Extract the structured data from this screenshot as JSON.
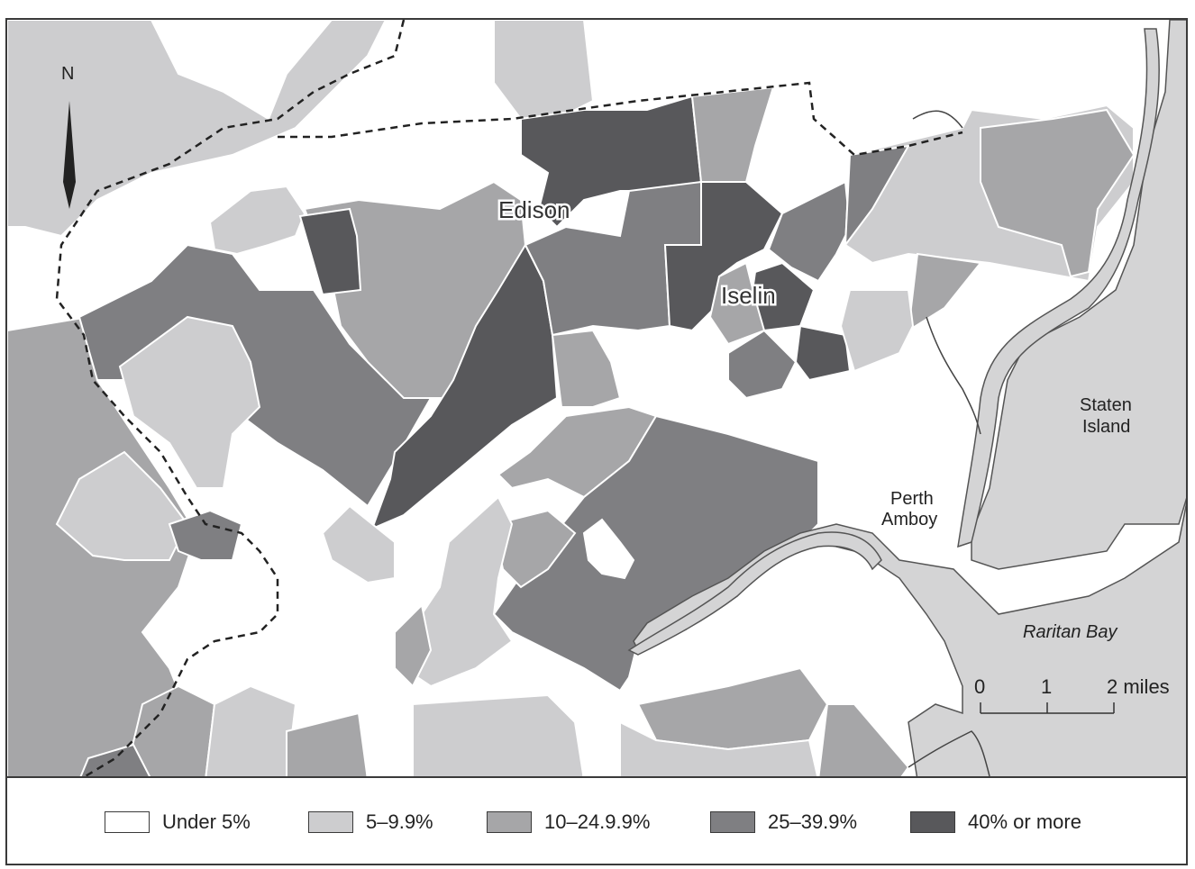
{
  "map": {
    "place_labels": {
      "edison": "Edison",
      "iselin": "Iselin",
      "staten_island_line1": "Staten",
      "staten_island_line2": "Island",
      "perth_amboy_line1": "Perth",
      "perth_amboy_line2": "Amboy",
      "raritan_bay": "Raritan Bay"
    },
    "north_arrow_label": "N",
    "scale_bar": {
      "tick_0": "0",
      "tick_1": "1",
      "tick_2": "2 miles"
    }
  },
  "legend": {
    "items": [
      {
        "label": "Under 5%",
        "color": "#ffffff"
      },
      {
        "label": "5–9.9%",
        "color": "#cdcdcf"
      },
      {
        "label": "10–24.9.9%",
        "color": "#a6a6a8"
      },
      {
        "label": "25–39.9%",
        "color": "#7f7f82"
      },
      {
        "label": "40% or more",
        "color": "#58585b"
      }
    ]
  },
  "colors": {
    "water": "#d4d4d5",
    "border": "#3a3a3a"
  }
}
